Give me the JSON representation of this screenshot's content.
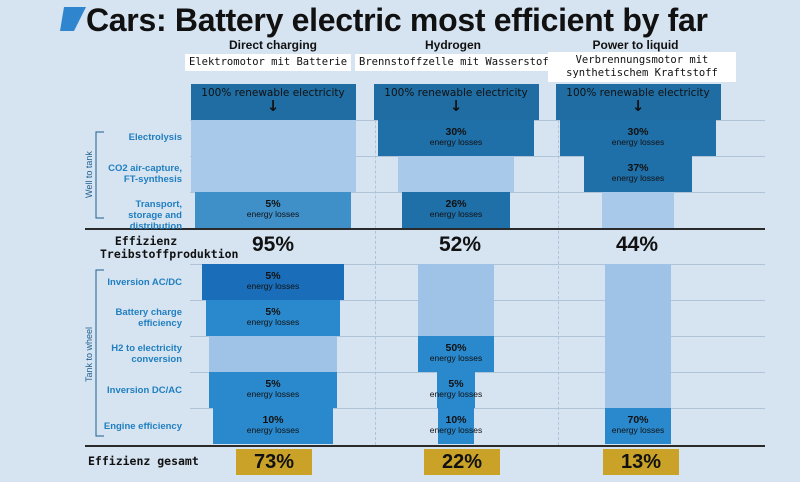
{
  "title": "Cars: Battery electric most efficient by far",
  "colors": {
    "dark": "#1f6fa8",
    "mid": "#3f8fc8",
    "light": "#a9c9ea",
    "pale": "#9fc3e6",
    "gold": "#c9a227",
    "top": "#1f6da3"
  },
  "chart_data": {
    "type": "table",
    "title": "Cars: Battery electric most efficient by far",
    "columns": [
      {
        "name": "Direct charging",
        "subtitle": "Elektromotor mit Batterie"
      },
      {
        "name": "Hydrogen",
        "subtitle": "Brennstoffzelle mit Wasserstoff"
      },
      {
        "name": "Power to liquid",
        "subtitle": "Verbrennungsmotor mit synthetischem Kraftstoff"
      }
    ],
    "source_label": "100% renewable electricity",
    "well_to_tank_label": "Well to tank",
    "tank_to_wheel_label": "Tank to wheel",
    "rows_well_to_tank": [
      {
        "label": "Electrolysis",
        "losses": [
          null,
          30,
          30
        ]
      },
      {
        "label": "CO2 air-capture, FT-synthesis",
        "losses": [
          null,
          null,
          37
        ]
      },
      {
        "label": "Transport, storage and distribution",
        "losses": [
          5,
          26,
          null
        ]
      }
    ],
    "mid_label": "Effizienz Treibstoffproduktion",
    "mid_values": [
      "95%",
      "52%",
      "44%"
    ],
    "rows_tank_to_wheel": [
      {
        "label": "Inversion AC/DC",
        "losses": [
          5,
          null,
          null
        ]
      },
      {
        "label": "Battery charge efficiency",
        "losses": [
          5,
          null,
          null
        ]
      },
      {
        "label": "H2 to electricity conversion",
        "losses": [
          null,
          50,
          null
        ]
      },
      {
        "label": "Inversion DC/AC",
        "losses": [
          5,
          5,
          null
        ]
      },
      {
        "label": "Engine efficiency",
        "losses": [
          10,
          10,
          70
        ]
      }
    ],
    "loss_suffix": "energy losses",
    "total_label": "Effizienz gesamt",
    "total_values": [
      "73%",
      "22%",
      "13%"
    ]
  }
}
